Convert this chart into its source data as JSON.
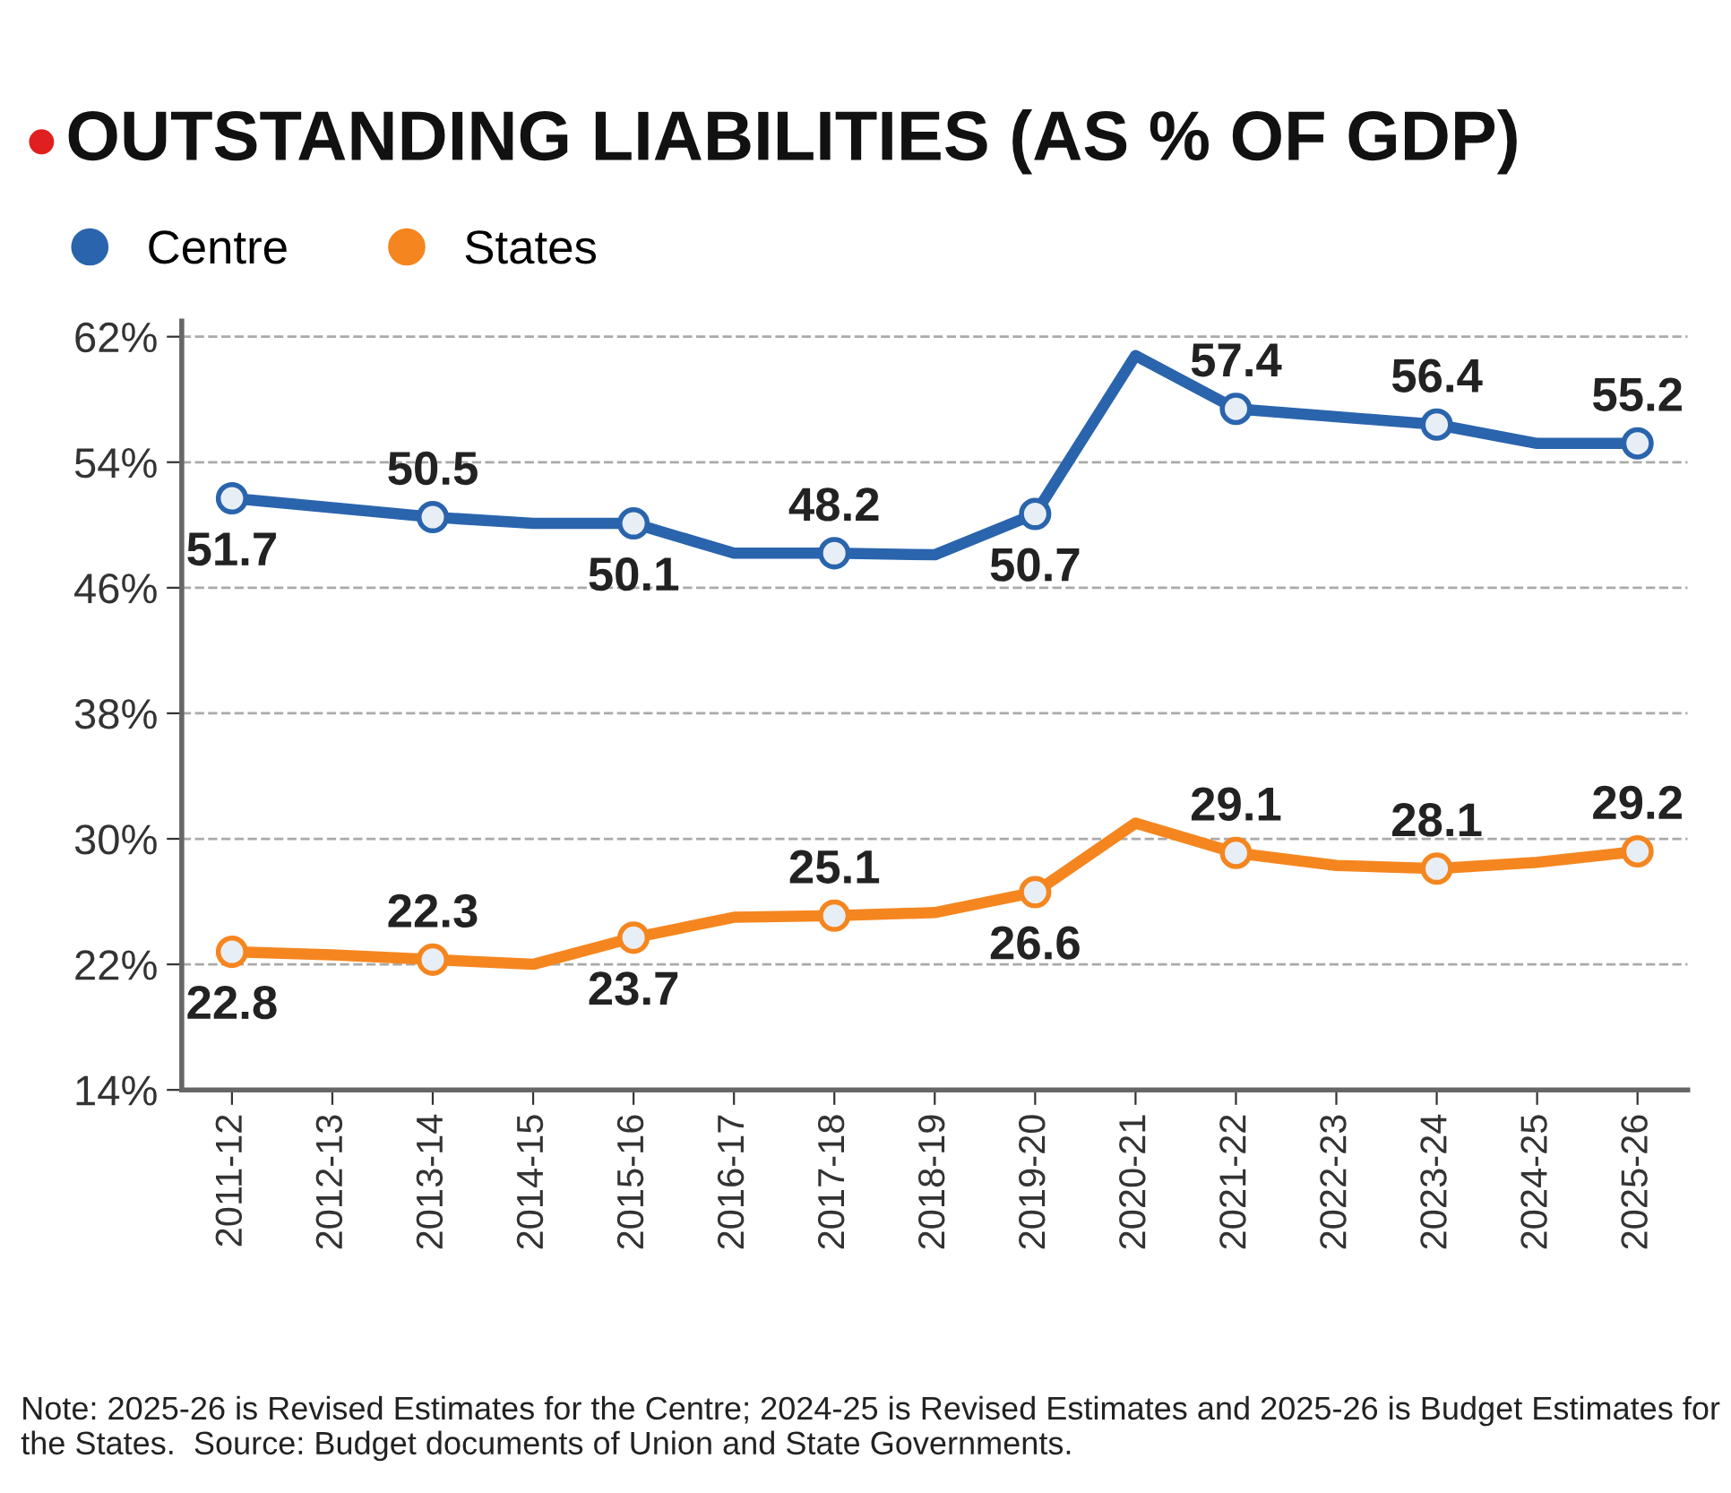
{
  "chart_data": {
    "type": "line",
    "title": "OUTSTANDING LIABILITIES (AS % OF GDP)",
    "categories": [
      "2011-12",
      "2012-13",
      "2013-14",
      "2014-15",
      "2015-16",
      "2016-17",
      "2017-18",
      "2018-19",
      "2019-20",
      "2020-21",
      "2021-22",
      "2022-23",
      "2023-24",
      "2024-25",
      "2025-26"
    ],
    "series": [
      {
        "name": "Centre",
        "color": "#2a64ad",
        "values": [
          51.7,
          51.1,
          50.5,
          50.1,
          50.1,
          48.2,
          48.2,
          48.1,
          50.7,
          60.8,
          57.4,
          56.9,
          56.4,
          55.2,
          55.2
        ],
        "value_labels": [
          "51.7",
          null,
          "50.5",
          null,
          "50.1",
          null,
          "48.2",
          null,
          "50.7",
          null,
          "57.4",
          null,
          "56.4",
          null,
          "55.2"
        ]
      },
      {
        "name": "States",
        "color": "#f5861f",
        "values": [
          22.8,
          22.6,
          22.3,
          22.0,
          23.7,
          25.0,
          25.1,
          25.3,
          26.6,
          31.0,
          29.1,
          28.3,
          28.1,
          28.5,
          29.2
        ],
        "value_labels": [
          "22.8",
          null,
          "22.3",
          null,
          "23.7",
          null,
          "25.1",
          null,
          "26.6",
          null,
          "29.1",
          null,
          "28.1",
          null,
          "29.2"
        ]
      }
    ],
    "ylim": [
      14,
      63
    ],
    "yticks": [
      {
        "value": 14,
        "label": "14%"
      },
      {
        "value": 22,
        "label": "22%"
      },
      {
        "value": 30,
        "label": "30%"
      },
      {
        "value": 38,
        "label": "38%"
      },
      {
        "value": 46,
        "label": "46%"
      },
      {
        "value": 54,
        "label": "54%"
      },
      {
        "value": 62,
        "label": "62%"
      }
    ],
    "grid": "y",
    "legend": "top left",
    "marker": "circle",
    "line_style": "solid",
    "annotations": [
      "Note: 2025-26 is Revised Estimates for the Centre; 2024-25 is Revised Estimates and 2025-26 is Budget Estimates for the States.  Source: Budget documents of Union and State Governments."
    ]
  }
}
